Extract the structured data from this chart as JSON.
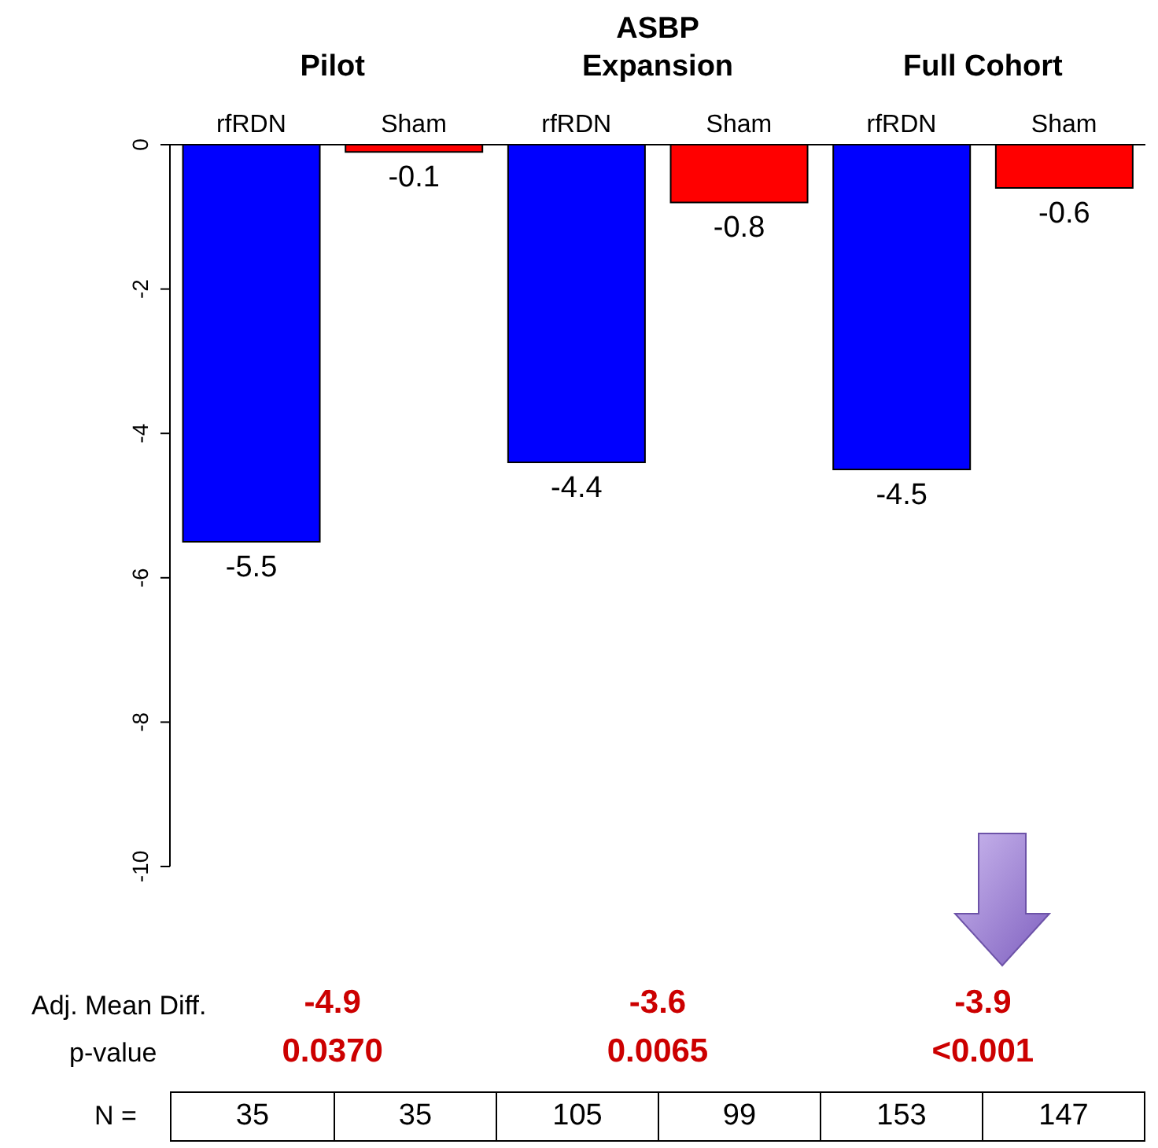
{
  "chart_data": {
    "type": "bar",
    "title": "ASBP",
    "categories": [
      "rfRDN",
      "Sham",
      "rfRDN",
      "Sham",
      "rfRDN",
      "Sham"
    ],
    "values": [
      -5.5,
      -0.1,
      -4.4,
      -0.8,
      -4.5,
      -0.6
    ],
    "colors": [
      "#0000ff",
      "#ff0000",
      "#0000ff",
      "#ff0000",
      "#0000ff",
      "#ff0000"
    ],
    "ylim": [
      -10,
      0
    ],
    "yticks": [
      -10,
      -8,
      -6,
      -4,
      -2,
      0
    ],
    "data_labels": true,
    "annotations": [
      "Pilot",
      "Expansion",
      "Full Cohort",
      "Adj. Mean Diff.",
      "-4.9",
      "-3.6",
      "-3.9",
      "p-value",
      "0.0370",
      "0.0065",
      "<0.001",
      "N =",
      "35",
      "35",
      "105",
      "99",
      "153",
      "147"
    ]
  }
}
